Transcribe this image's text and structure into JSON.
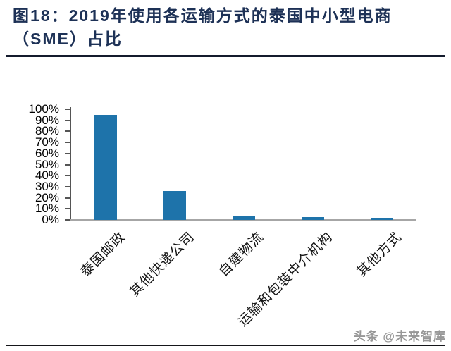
{
  "title": {
    "line1": "图18：2019年使用各运输方式的泰国中小型电商",
    "line2": "（SME）占比"
  },
  "watermark": {
    "text": "头条 @未来智库"
  },
  "colors": {
    "title": "#1D3156",
    "bar": "#1E73AA",
    "axis": "#555555",
    "baseline": "#A6A6A6",
    "rule": "#141B2D",
    "watermark": "#979797"
  },
  "chart_data": {
    "type": "bar",
    "title": "2019年使用各运输方式的泰国中小型电商（SME）占比",
    "categories": [
      "泰国邮政",
      "其他快递公司",
      "自建物流",
      "运输和包装中介机构",
      "其他方式"
    ],
    "values": [
      95,
      26,
      3,
      2.5,
      2
    ],
    "xlabel": "",
    "ylabel": "",
    "ylim": [
      0,
      100
    ],
    "ytick_step": 10,
    "yticks": [
      "0%",
      "10%",
      "20%",
      "30%",
      "40%",
      "50%",
      "60%",
      "70%",
      "80%",
      "90%",
      "100%"
    ],
    "grid": false,
    "legend_position": "none",
    "bar_color": "#1E73AA"
  }
}
